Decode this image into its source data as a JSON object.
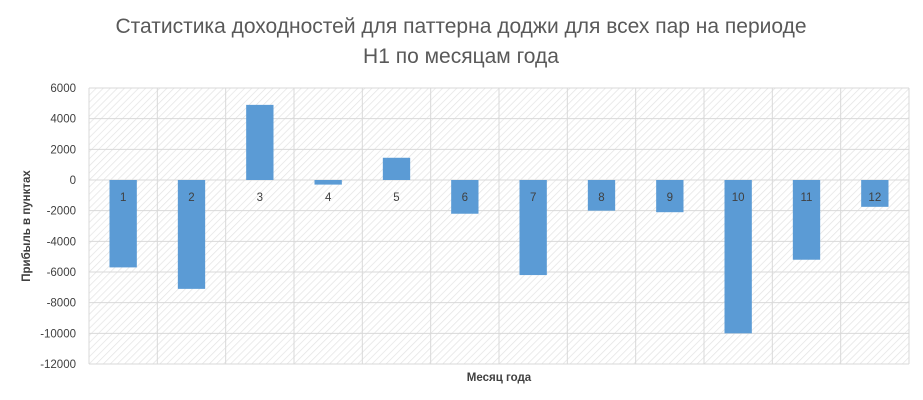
{
  "chart_data": {
    "type": "bar",
    "title_lines": [
      "Статистика доходностей для паттерна доджи для всех пар на периоде",
      "H1 по месяцам года"
    ],
    "xlabel": "Месяц года",
    "ylabel": "Прибыль в пунктах",
    "categories": [
      "1",
      "2",
      "3",
      "4",
      "5",
      "6",
      "7",
      "8",
      "9",
      "10",
      "11",
      "12"
    ],
    "values": [
      -5700,
      -7100,
      4900,
      -300,
      1450,
      -2200,
      -6200,
      -2000,
      -2100,
      -10000,
      -5200,
      -1750
    ],
    "ylim": [
      -12000,
      6000
    ],
    "yticks": [
      6000,
      4000,
      2000,
      0,
      -2000,
      -4000,
      -6000,
      -8000,
      -10000,
      -12000
    ],
    "ytick_labels": [
      "6000",
      "4000",
      "2000",
      "0",
      "-2000",
      "-4000",
      "-6000",
      "-8000",
      "-10000",
      "-12000"
    ],
    "grid": true,
    "colors": {
      "bar": "#5b9bd5",
      "title": "#595959",
      "axis_text": "#404040",
      "label_text": "#404040",
      "grid": "#d9d9d9",
      "hatch": "#e6e6e6"
    }
  }
}
